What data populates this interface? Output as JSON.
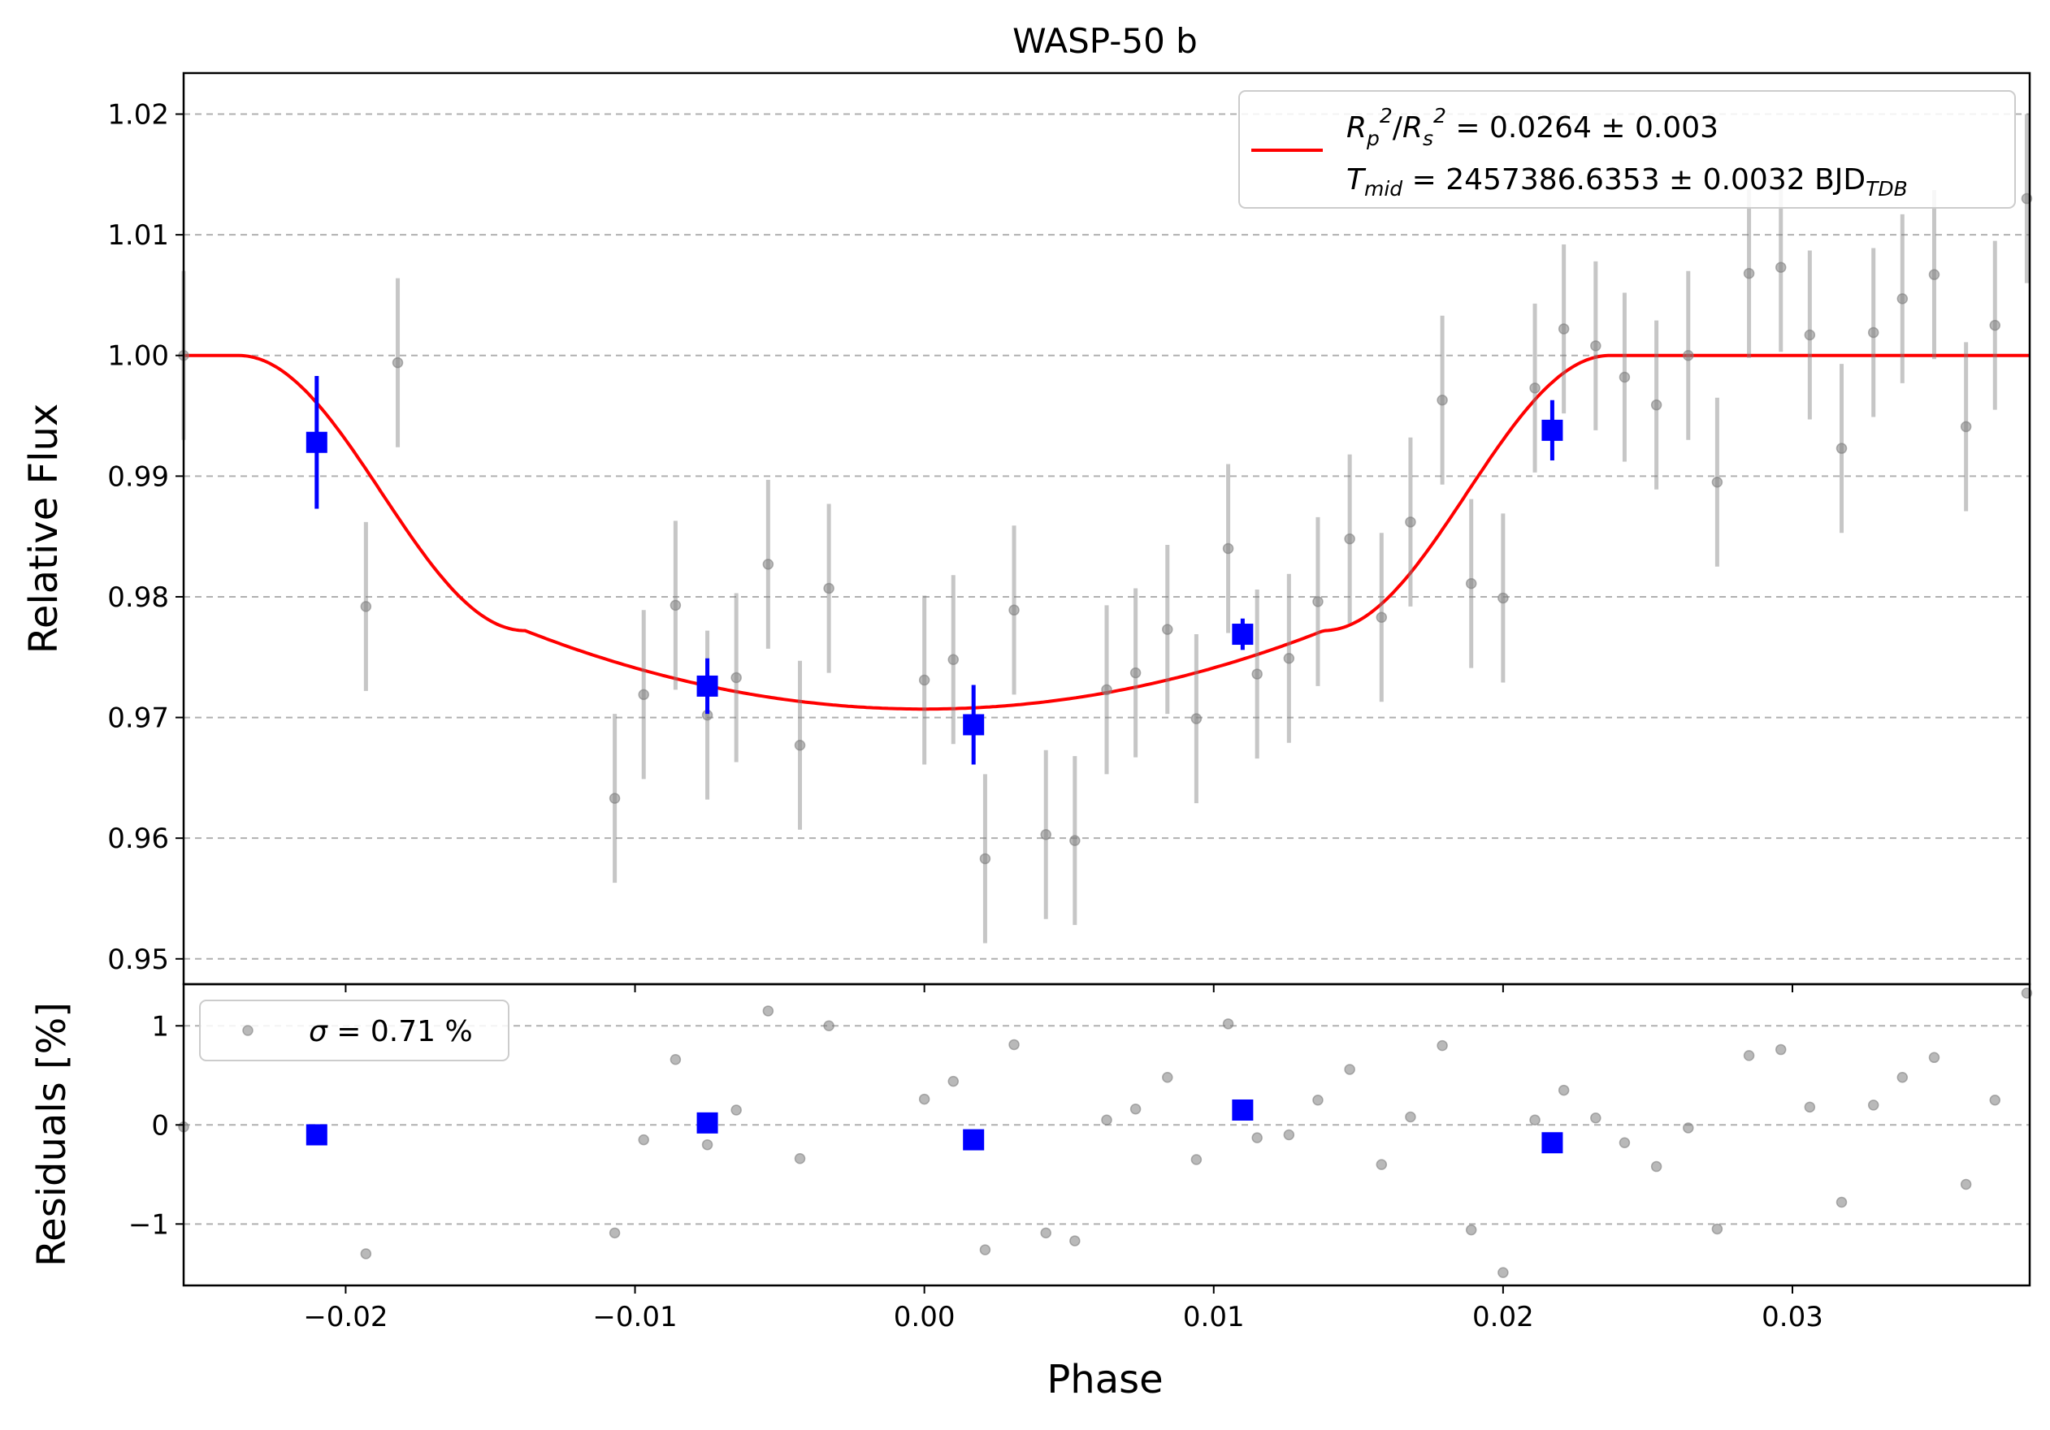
{
  "chart_data": [
    {
      "type": "scatter",
      "title": "WASP-50 b",
      "xlabel": "",
      "ylabel": "Relative Flux",
      "xlim": [
        -0.0256,
        0.0382
      ],
      "ylim": [
        0.9479,
        1.0234
      ],
      "xticks": [
        -0.02,
        -0.01,
        0.0,
        0.01,
        0.02,
        0.03
      ],
      "xtick_labels": [
        "−0.02",
        "−0.01",
        "0.00",
        "0.01",
        "0.02",
        "0.03"
      ],
      "yticks": [
        0.95,
        0.96,
        0.97,
        0.98,
        0.99,
        1.0,
        1.01,
        1.02
      ],
      "ytick_labels": [
        "0.95",
        "0.96",
        "0.97",
        "0.98",
        "0.99",
        "1.00",
        "1.01",
        "1.02"
      ],
      "grid": "horizontal dashed",
      "legend_position": "upper right",
      "legend": {
        "line1_prefix": "R",
        "line1_rest": " = 0.0264 ± 0.003",
        "line2_prefix": "T",
        "line2_sub": "mid",
        "line2_value": " = 2457386.6353 ± 0.0032 BJD",
        "line2_unit_sub": "TDB"
      },
      "model": {
        "color": "#ff0000",
        "depth": 0.0264,
        "t14_half": 0.0237,
        "t23_half": 0.0138,
        "curve_min": 0.9707
      },
      "data_points": {
        "color": "#808080",
        "x": [
          -0.0256,
          -0.0193,
          -0.0182,
          -0.0107,
          -0.0097,
          -0.0086,
          -0.0075,
          -0.0065,
          -0.0054,
          -0.0043,
          -0.0033,
          0.0,
          0.001,
          0.0021,
          0.0031,
          0.0042,
          0.0052,
          0.0063,
          0.0073,
          0.0084,
          0.0094,
          0.0105,
          0.0115,
          0.0126,
          0.0136,
          0.0147,
          0.0158,
          0.0168,
          0.0179,
          0.0189,
          0.02,
          0.0211,
          0.0221,
          0.0232,
          0.0242,
          0.0253,
          0.0264,
          0.0274,
          0.0285,
          0.0296,
          0.0306,
          0.0317,
          0.0328,
          0.0338,
          0.0349,
          0.036,
          0.037,
          0.0381
        ],
        "y": [
          1.0,
          0.9792,
          0.9994,
          0.9633,
          0.9719,
          0.9793,
          0.9702,
          0.9733,
          0.9827,
          0.9677,
          0.9807,
          0.9731,
          0.9748,
          0.9583,
          0.9789,
          0.9603,
          0.9598,
          0.9723,
          0.9737,
          0.9773,
          0.9699,
          0.984,
          0.9736,
          0.9749,
          0.9796,
          0.9848,
          0.9783,
          0.9862,
          0.9963,
          0.9811,
          0.9799,
          0.9973,
          1.0022,
          1.0008,
          0.9982,
          0.9959,
          1.0,
          0.9895,
          1.0068,
          1.0073,
          1.0017,
          0.9923,
          1.0019,
          1.0047,
          1.0067,
          0.9941,
          1.0025,
          1.013
        ],
        "yerr": 0.007
      },
      "binned_points": {
        "color": "#0000ff",
        "x": [
          -0.021,
          -0.0075,
          0.0017,
          0.011,
          0.0217
        ],
        "y": [
          0.9928,
          0.9726,
          0.9694,
          0.9769,
          0.9938
        ],
        "yerr": [
          0.0055,
          0.0023,
          0.0033,
          0.0013,
          0.0025
        ]
      }
    },
    {
      "type": "scatter",
      "xlabel": "Phase",
      "ylabel": "Residuals [%]",
      "xlim": [
        -0.0256,
        0.0382
      ],
      "ylim": [
        -1.62,
        1.42
      ],
      "yticks": [
        -1,
        0,
        1
      ],
      "ytick_labels": [
        "−1",
        "0",
        "1"
      ],
      "grid": "horizontal dashed",
      "legend_position": "upper left",
      "legend": {
        "sigma_symbol": "σ",
        "sigma_text": " = 0.71 %"
      },
      "data_points": {
        "color": "#808080",
        "x": [
          -0.0256,
          -0.0193,
          -0.0107,
          -0.0097,
          -0.0086,
          -0.0075,
          -0.0065,
          -0.0054,
          -0.0043,
          -0.0033,
          0.0,
          0.001,
          0.0021,
          0.0031,
          0.0042,
          0.0052,
          0.0063,
          0.0073,
          0.0084,
          0.0094,
          0.0105,
          0.0115,
          0.0126,
          0.0136,
          0.0147,
          0.0158,
          0.0168,
          0.0179,
          0.0189,
          0.02,
          0.0211,
          0.0221,
          0.0232,
          0.0242,
          0.0253,
          0.0264,
          0.0274,
          0.0285,
          0.0296,
          0.0306,
          0.0317,
          0.0328,
          0.0338,
          0.0349,
          0.036,
          0.037,
          0.0381
        ],
        "y": [
          -0.02,
          -1.3,
          -1.09,
          -0.15,
          0.66,
          -0.2,
          0.15,
          1.15,
          -0.34,
          1.0,
          0.26,
          0.44,
          -1.26,
          0.81,
          -1.09,
          -1.17,
          0.05,
          0.16,
          0.48,
          -0.35,
          1.02,
          -0.13,
          -0.1,
          0.25,
          0.56,
          -0.4,
          0.08,
          0.8,
          -1.06,
          -1.49,
          0.05,
          0.35,
          0.07,
          -0.18,
          -0.42,
          -0.03,
          -1.05,
          0.7,
          0.76,
          0.18,
          -0.78,
          0.2,
          0.48,
          0.68,
          -0.6,
          0.25,
          1.33
        ]
      },
      "binned_points": {
        "color": "#0000ff",
        "x": [
          -0.021,
          -0.0075,
          0.0017,
          0.011,
          0.0217
        ],
        "y": [
          -0.1,
          0.02,
          -0.15,
          0.15,
          -0.18
        ]
      }
    }
  ]
}
